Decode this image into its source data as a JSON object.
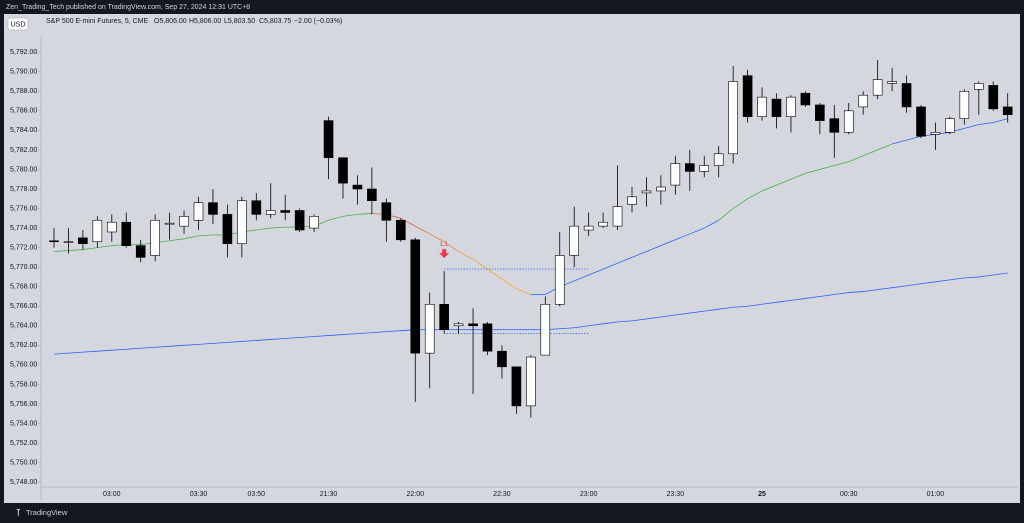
{
  "publisher": "Zen_Trading_Tech published on TradingView.com, Sep 27, 2024 12:31 UTC+8",
  "brand": "TradingView",
  "chart_data": {
    "type": "candlestick",
    "currency": "USD",
    "title": "S&P 500 E-mini Futures, 5, CME",
    "legend_values": [
      "O5,806.00",
      "H5,806.00",
      "L5,803.50",
      "C5,803.75",
      "−2.00 (−0.03%)"
    ],
    "categories": [
      null,
      null,
      null,
      null,
      "03:00",
      null,
      null,
      null,
      null,
      null,
      "03:30",
      null,
      null,
      null,
      "03:50",
      null,
      null,
      null,
      null,
      "21:30",
      null,
      null,
      null,
      null,
      null,
      "22:00",
      null,
      null,
      null,
      null,
      null,
      "22:30",
      null,
      null,
      null,
      null,
      null,
      "23:00",
      null,
      null,
      null,
      null,
      null,
      "23:30",
      null,
      null,
      null,
      null,
      null,
      "25",
      null,
      null,
      null,
      null,
      null,
      "00:30",
      null,
      null,
      null,
      null,
      null,
      "01:00",
      null,
      null,
      null,
      null,
      null
    ],
    "open": [
      5772.7,
      5772.6,
      5773,
      5772.6,
      5773.6,
      5774.6,
      5772.2,
      5771.2,
      5774.4,
      5774.2,
      5774.8,
      5776.6,
      5775.4,
      5772.4,
      5776.8,
      5775.4,
      5775.8,
      5775.8,
      5774,
      5785,
      5781.2,
      5778.4,
      5778,
      5776.6,
      5774.8,
      5772.8,
      5761.2,
      5766.2,
      5764,
      5764.2,
      5764.2,
      5761.4,
      5759.8,
      5755.8,
      5761,
      5766.2,
      5771.2,
      5773.8,
      5774.2,
      5774.2,
      5776.4,
      5777.6,
      5777.8,
      5778.4,
      5780.6,
      5779.8,
      5780.4,
      5781.6,
      5789.6,
      5785.4,
      5787.2,
      5785.4,
      5787.8,
      5786.6,
      5785.2,
      5783.8,
      5786.4,
      5787.6,
      5788.8,
      5788.8,
      5786.4,
      5783.6,
      5783.8,
      5785.2,
      5788.2,
      5788.6,
      5786.4
    ],
    "high": [
      5774,
      5774,
      5773.8,
      5775.2,
      5775.4,
      5775.6,
      5772.8,
      5775.4,
      5775.6,
      5775.8,
      5777.2,
      5778,
      5776.4,
      5777.2,
      5777.6,
      5778.6,
      5777.4,
      5776,
      5775.4,
      5785.4,
      5781.2,
      5779.4,
      5780.2,
      5777,
      5775,
      5773,
      5767.4,
      5769.6,
      5764.4,
      5765.8,
      5764.4,
      5762,
      5759.8,
      5761,
      5767,
      5773.6,
      5776.2,
      5775.6,
      5775.6,
      5780.4,
      5778.2,
      5779.2,
      5779.4,
      5781.4,
      5782,
      5781.4,
      5782.4,
      5790.6,
      5790.2,
      5788.4,
      5787.8,
      5787.6,
      5788,
      5786.8,
      5786.6,
      5786.8,
      5788,
      5791.2,
      5790.4,
      5789.6,
      5786.6,
      5784.8,
      5785.4,
      5788.2,
      5789,
      5789,
      5787.8
    ],
    "low": [
      5772,
      5771.4,
      5771.8,
      5772,
      5772.6,
      5772,
      5770.5,
      5770.6,
      5772.8,
      5773.4,
      5773.8,
      5774.4,
      5771,
      5771,
      5774.8,
      5775,
      5774.8,
      5773.6,
      5773.6,
      5779,
      5777,
      5776.4,
      5775.4,
      5772.6,
      5772.6,
      5756.2,
      5757.6,
      5763.2,
      5763.2,
      5757,
      5761,
      5758.6,
      5755,
      5754.6,
      5761,
      5766,
      5770,
      5773.2,
      5774,
      5773.8,
      5775.6,
      5776.2,
      5776.4,
      5777.4,
      5777.8,
      5779.2,
      5779.2,
      5780.6,
      5784.8,
      5785,
      5784.2,
      5783.8,
      5786.4,
      5783.6,
      5781.2,
      5783.6,
      5785.6,
      5787.2,
      5788,
      5785.8,
      5783.2,
      5782,
      5783.6,
      5784.6,
      5785.6,
      5786,
      5784.8
    ],
    "close": [
      5772.6,
      5772.6,
      5772.4,
      5774.8,
      5774.6,
      5772.2,
      5771,
      5774.8,
      5774.5,
      5775.2,
      5776.6,
      5775.4,
      5772.4,
      5776.8,
      5775.4,
      5775.8,
      5775.6,
      5773.8,
      5775.2,
      5781.2,
      5778.6,
      5778,
      5776.8,
      5774.8,
      5772.8,
      5761.2,
      5766.2,
      5763.6,
      5764.2,
      5764,
      5761.4,
      5759.8,
      5755.8,
      5760.8,
      5766.2,
      5771.2,
      5774.2,
      5774.2,
      5774.6,
      5776.2,
      5777.2,
      5777.8,
      5778.2,
      5780.6,
      5779.8,
      5780.4,
      5781.6,
      5789,
      5785.4,
      5787.4,
      5785.4,
      5787.4,
      5786.6,
      5785,
      5783.8,
      5786,
      5787.6,
      5789.2,
      5789,
      5786.4,
      5783.4,
      5783.8,
      5785.2,
      5788,
      5788.8,
      5786.2,
      5785.6
    ],
    "up_color": "#ffffff",
    "down_color": "#000000",
    "moving_averages": [
      {
        "values": [
          5771.6,
          5771.7,
          5771.8,
          5772,
          5772.2,
          5772.3,
          5772.3,
          5772.5,
          5772.7,
          5772.9,
          5773.2,
          5773.3,
          5773.3,
          5773.6,
          5773.8,
          5774,
          5774.1,
          5774.1,
          5774.2,
          5774.8,
          5775.2,
          5775.4,
          5775.5,
          5775.4,
          5775,
          5774.2,
          5773.4,
          5772.6,
          5771.6,
          5770.8,
          5769.8,
          5768.8,
          5767.8,
          5767.2,
          5767.2,
          5768,
          5768.6,
          5769.2,
          5769.8,
          5770.4,
          5771,
          5771.6,
          5772.2,
          5772.8,
          5773.4,
          5774,
          5774.8,
          5776,
          5777,
          5777.8,
          5778.4,
          5779,
          5779.6,
          5780,
          5780.4,
          5780.8,
          5781.4,
          5782,
          5782.6,
          5783,
          5783.4,
          5783.6,
          5783.8,
          5784.2,
          5784.6,
          5784.8,
          5785.2
        ],
        "colors": [
          "#4caf50",
          "#4caf50",
          "#4caf50",
          "#4caf50",
          "#4caf50",
          "#4caf50",
          "#4caf50",
          "#4caf50",
          "#4caf50",
          "#4caf50",
          "#4caf50",
          "#4caf50",
          "#4caf50",
          "#4caf50",
          "#4caf50",
          "#4caf50",
          "#4caf50",
          "#4caf50",
          "#4caf50",
          "#4caf50",
          "#4caf50",
          "#4caf50",
          "#4caf50",
          "#e57373",
          "#ef5350",
          "#ef5350",
          "#f0634a",
          "#f27745",
          "#f38940",
          "#f5993b",
          "#f5a036",
          "#f5a636",
          "#f5a636",
          "#f5a636",
          "#2962ff",
          "#2962ff",
          "#2962ff",
          "#2962ff",
          "#2962ff",
          "#2962ff",
          "#2962ff",
          "#2962ff",
          "#2962ff",
          "#2962ff",
          "#2962ff",
          "#2962ff",
          "#2962ff",
          "#4caf50",
          "#4caf50",
          "#4caf50",
          "#4caf50",
          "#4caf50",
          "#4caf50",
          "#4caf50",
          "#4caf50",
          "#4caf50",
          "#4caf50",
          "#4caf50",
          "#4caf50",
          "#2962ff",
          "#2962ff",
          "#2962ff",
          "#2962ff",
          "#2962ff",
          "#2962ff",
          "#2962ff",
          "#2962ff"
        ]
      },
      {
        "values": [
          5761.1,
          5761.2,
          5761.3,
          5761.4,
          5761.5,
          5761.6,
          5761.7,
          5761.8,
          5761.9,
          5762.0,
          5762.1,
          5762.2,
          5762.3,
          5762.4,
          5762.5,
          5762.6,
          5762.7,
          5762.8,
          5762.9,
          5763.0,
          5763.1,
          5763.2,
          5763.3,
          5763.4,
          5763.5,
          5763.6,
          5763.6,
          5763.6,
          5763.6,
          5763.6,
          5763.6,
          5763.6,
          5763.6,
          5763.6,
          5763.6,
          5763.7,
          5763.8,
          5764.0,
          5764.2,
          5764.4,
          5764.5,
          5764.7,
          5764.9,
          5765.1,
          5765.3,
          5765.5,
          5765.7,
          5765.9,
          5766.0,
          5766.2,
          5766.4,
          5766.6,
          5766.8,
          5767.0,
          5767.2,
          5767.4,
          5767.5,
          5767.7,
          5767.9,
          5768.1,
          5768.3,
          5768.5,
          5768.7,
          5768.9,
          5769.0,
          5769.2,
          5769.4
        ],
        "color": "#2962ff"
      }
    ],
    "annotation": {
      "text": "L1",
      "index": 27,
      "color": "#f23645"
    },
    "levels": [
      {
        "value": 5769.8,
        "from": 27,
        "to": 37
      },
      {
        "value": 5763.2,
        "from": 27,
        "to": 37
      }
    ],
    "level_color": "#2962ff",
    "ylim": [
      5747.5,
      5795.5
    ],
    "yticks": [
      {
        "value": 5748,
        "label": "5,748.00"
      },
      {
        "value": 5750,
        "label": "5,750.00"
      },
      {
        "value": 5752,
        "label": "5,752.00"
      },
      {
        "value": 5754,
        "label": "5,754.00"
      },
      {
        "value": 5756,
        "label": "5,756.00"
      },
      {
        "value": 5758,
        "label": "5,758.00"
      },
      {
        "value": 5760,
        "label": "5,760.00"
      },
      {
        "value": 5762,
        "label": "5,762.00"
      },
      {
        "value": 5764,
        "label": "5,764.00"
      },
      {
        "value": 5766,
        "label": "5,766.00"
      },
      {
        "value": 5768,
        "label": "5,768.00"
      },
      {
        "value": 5770,
        "label": "5,770.00"
      },
      {
        "value": 5772,
        "label": "5,772.00"
      },
      {
        "value": 5774,
        "label": "5,774.00"
      },
      {
        "value": 5776,
        "label": "5,776.00"
      },
      {
        "value": 5778,
        "label": "5,778.00"
      },
      {
        "value": 5780,
        "label": "5,780.00"
      },
      {
        "value": 5782,
        "label": "5,782.00"
      },
      {
        "value": 5784,
        "label": "5,784.00"
      },
      {
        "value": 5786,
        "label": "5,786.00"
      },
      {
        "value": 5788,
        "label": "5,788.00"
      },
      {
        "value": 5790,
        "label": "5,790.00"
      },
      {
        "value": 5792,
        "label": "5,792.00"
      }
    ]
  }
}
